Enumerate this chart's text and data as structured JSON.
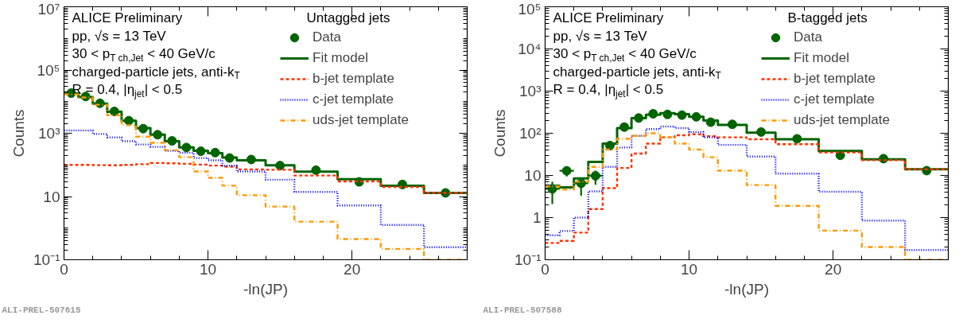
{
  "chart_data": [
    {
      "type": "histogram",
      "xlabel": "-ln(JP)",
      "ylabel": "Counts",
      "log": "y",
      "xlim": [
        0,
        28
      ],
      "xticks": [
        0,
        10,
        20
      ],
      "ylim": [
        0.1,
        10000000
      ],
      "yticks": [
        {
          "value": 0.1,
          "label": "10⁻¹"
        },
        10,
        {
          "value": 1000,
          "label": "10³"
        },
        {
          "value": 100000,
          "label": "10⁵"
        },
        {
          "value": 10000000,
          "label": "10⁷"
        }
      ],
      "grid": false,
      "legend": "top right",
      "bins": [
        0,
        1,
        2,
        3,
        4,
        5,
        6,
        7,
        8,
        9,
        10,
        11,
        12,
        14,
        16,
        19,
        22,
        25,
        28
      ],
      "annotations": [
        "ALICE Preliminary",
        "pp, √s = 13 TeV",
        "30 < p$_{T ch,Jet}$ < 40 GeV/c",
        "charged-particle jets, anti-k$_{T}$",
        "R = 0.4, |η$_{jet}$| < 0.5",
        "Untagged jets",
        "ALI-PREL-507615"
      ],
      "series": [
        {
          "name": "Data",
          "type": "scatter",
          "marker": "circle",
          "color": "#006400",
          "x": [
            0.5,
            1.5,
            2.5,
            3.5,
            4.5,
            5.5,
            6.5,
            7.5,
            8.5,
            9.5,
            10.5,
            11.5,
            13,
            15,
            17.5,
            20.5,
            23.5,
            26.5
          ],
          "values": [
            18600,
            14500,
            8900,
            4900,
            2500,
            1400,
            900,
            575,
            355,
            270,
            245,
            165,
            148,
            95,
            68,
            29,
            24,
            13
          ]
        },
        {
          "name": "Fit model",
          "line_style": "solid",
          "color": "#006400",
          "values": [
            18000,
            14000,
            8600,
            4800,
            2500,
            1450,
            900,
            560,
            360,
            280,
            235,
            170,
            140,
            97,
            61,
            35,
            22,
            13
          ]
        },
        {
          "name": "b-jet template",
          "line_style": "dashed",
          "color": "#ff3300",
          "values": [
            100,
            100,
            98,
            97,
            100,
            105,
            115,
            112,
            108,
            102,
            95,
            88,
            72,
            70,
            46,
            30,
            20,
            13
          ]
        },
        {
          "name": "c-jet template",
          "line_style": "dotted",
          "color": "#0000ff",
          "values": [
            1230,
            1230,
            950,
            740,
            560,
            440,
            370,
            280,
            240,
            165,
            140,
            94,
            62,
            34,
            14,
            5.2,
            1.26,
            0.25
          ]
        },
        {
          "name": "uds-jet template",
          "line_style": "dashdot",
          "color": "#ff9900",
          "values": [
            17000,
            13500,
            8000,
            3700,
            1800,
            780,
            500,
            290,
            175,
            62,
            39,
            22,
            11,
            4.8,
            1.6,
            0.45,
            0.22,
            0.1
          ]
        }
      ]
    },
    {
      "type": "histogram",
      "xlabel": "-ln(JP)",
      "ylabel": "Counts",
      "log": "y",
      "xlim": [
        0,
        28
      ],
      "xticks": [
        0,
        10,
        20
      ],
      "ylim": [
        0.1,
        100000
      ],
      "yticks": [
        {
          "value": 0.1,
          "label": "10⁻¹"
        },
        1,
        10,
        {
          "value": 100,
          "label": "10²"
        },
        {
          "value": 1000,
          "label": "10³"
        },
        {
          "value": 10000,
          "label": "10⁴"
        },
        {
          "value": 100000,
          "label": "10⁵"
        }
      ],
      "grid": false,
      "legend": "top right",
      "bins": [
        0,
        1,
        2,
        3,
        4,
        5,
        6,
        7,
        8,
        9,
        10,
        11,
        12,
        14,
        16,
        19,
        22,
        25,
        28
      ],
      "annotations": [
        "ALICE Preliminary",
        "pp, √s = 13 TeV",
        "30 < p$_{T ch,Jet}$ < 40 GeV/c",
        "charged-particle jets, anti-k$_{T}$",
        "R = 0.4, |η$_{jet}$| < 0.5",
        "B-tagged jets",
        "ALI-PREL-507588"
      ],
      "series": [
        {
          "name": "Data",
          "type": "scatter",
          "marker": "circle",
          "color": "#006400",
          "x": [
            0.5,
            1.5,
            2.5,
            3.5,
            4.5,
            5.5,
            6.5,
            7.5,
            8.5,
            9.5,
            10.5,
            11.5,
            13,
            15,
            17.5,
            20.5,
            23.5,
            26.5
          ],
          "values": [
            4.8,
            12.9,
            6.5,
            9.8,
            51,
            140,
            230,
            290,
            280,
            270,
            245,
            183,
            163,
            107,
            74,
            30,
            25,
            13
          ],
          "errors": [
            [
              2.1,
              7.1
            ],
            [
              9.5,
              16
            ],
            [
              3.3,
              9
            ],
            [
              6,
              13
            ],
            null,
            null,
            null,
            null,
            null,
            null,
            null,
            null,
            null,
            null,
            null,
            null,
            null,
            null
          ],
          "xerrors": [
            0.5,
            0.5,
            0.5,
            0.5,
            null,
            null,
            null,
            null,
            null,
            null,
            null,
            null,
            null,
            null,
            null,
            null,
            null,
            null
          ]
        },
        {
          "name": "Fit model",
          "line_style": "solid",
          "color": "#006400",
          "values": [
            5.7,
            5.2,
            8.5,
            21,
            57,
            133,
            228,
            275,
            300,
            285,
            245,
            200,
            158,
            103,
            72,
            38,
            24,
            14
          ]
        },
        {
          "name": "b-jet template",
          "line_style": "dashed",
          "color": "#ff3300",
          "values": [
            0.25,
            0.28,
            0.44,
            1.6,
            5,
            15,
            33,
            57,
            80,
            90,
            95,
            85,
            80,
            72,
            55,
            35,
            23,
            14
          ]
        },
        {
          "name": "c-jet template",
          "line_style": "dotted",
          "color": "#0000ff",
          "values": [
            0.38,
            0.48,
            1,
            4.2,
            16,
            46,
            87,
            126,
            145,
            133,
            107,
            80,
            53,
            28,
            11,
            4.1,
            0.85,
            0.17
          ]
        },
        {
          "name": "uds-jet template",
          "line_style": "dashdot",
          "color": "#ff9900",
          "values": [
            5.5,
            4.6,
            7.1,
            16,
            41,
            74,
            87,
            100,
            80,
            57,
            41,
            27,
            13,
            5.9,
            1.9,
            0.49,
            0.2,
            0.1
          ]
        }
      ]
    }
  ]
}
